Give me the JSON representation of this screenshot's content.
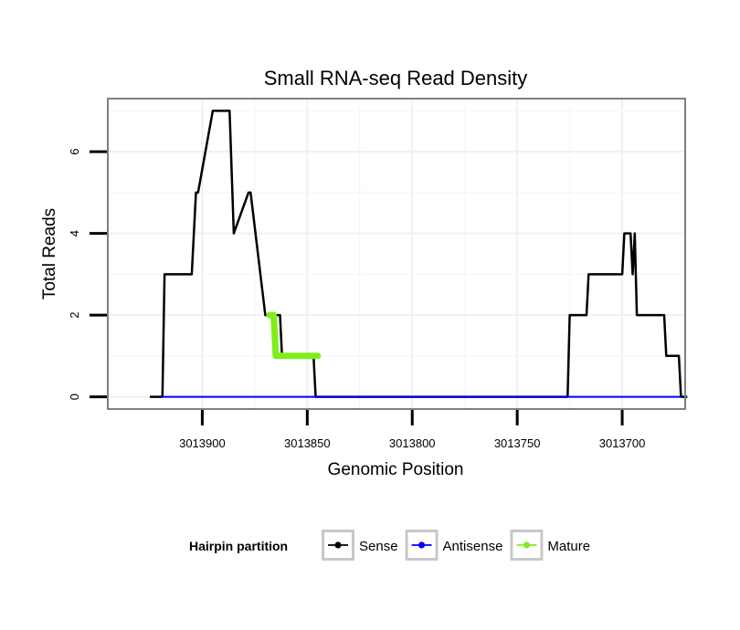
{
  "chart_data": {
    "type": "line",
    "title": "Small RNA-seq Read Density",
    "xlabel": "Genomic Position",
    "ylabel": "Total Reads",
    "x_reversed": true,
    "xlim": [
      3013670,
      3013945
    ],
    "ylim": [
      -0.3,
      7.3
    ],
    "x_ticks": [
      3013900,
      3013850,
      3013800,
      3013750,
      3013700
    ],
    "x_tick_labels": [
      "3013900",
      "3013850",
      "3013800",
      "3013750",
      "3013700"
    ],
    "y_ticks": [
      0,
      2,
      4,
      6
    ],
    "y_tick_labels": [
      "0",
      "2",
      "4",
      "6"
    ],
    "grid": true,
    "legend_position": "bottom",
    "legend_title": "Hairpin partition",
    "series": [
      {
        "name": "Sense",
        "color": "#000000",
        "x": [
          3013925,
          3013919,
          3013918,
          3013905,
          3013903,
          3013902,
          3013895,
          3013894,
          3013893,
          3013892,
          3013887,
          3013885,
          3013878,
          3013877,
          3013870,
          3013869,
          3013863,
          3013862,
          3013860,
          3013859,
          3013847,
          3013846,
          3013726,
          3013725,
          3013717,
          3013716,
          3013710,
          3013709,
          3013700,
          3013699,
          3013696,
          3013695,
          3013694,
          3013693,
          3013692,
          3013680,
          3013679,
          3013673,
          3013672,
          3013669
        ],
        "y": [
          0,
          0,
          3,
          3,
          5,
          5,
          7,
          7,
          7,
          7,
          7,
          4,
          5,
          5,
          2,
          2,
          2,
          1,
          1,
          1,
          1,
          0,
          0,
          2,
          2,
          3,
          3,
          3,
          3,
          4,
          4,
          3,
          4,
          2,
          2,
          2,
          1,
          1,
          0,
          0
        ]
      },
      {
        "name": "Antisense",
        "color": "#0000ff",
        "x": [
          3013919,
          3013672
        ],
        "y": [
          0,
          0
        ]
      },
      {
        "name": "Mature",
        "color": "#7fee1a",
        "x": [
          3013868,
          3013866,
          3013865,
          3013864,
          3013845
        ],
        "y": [
          2,
          2,
          1,
          1,
          1
        ]
      }
    ]
  }
}
